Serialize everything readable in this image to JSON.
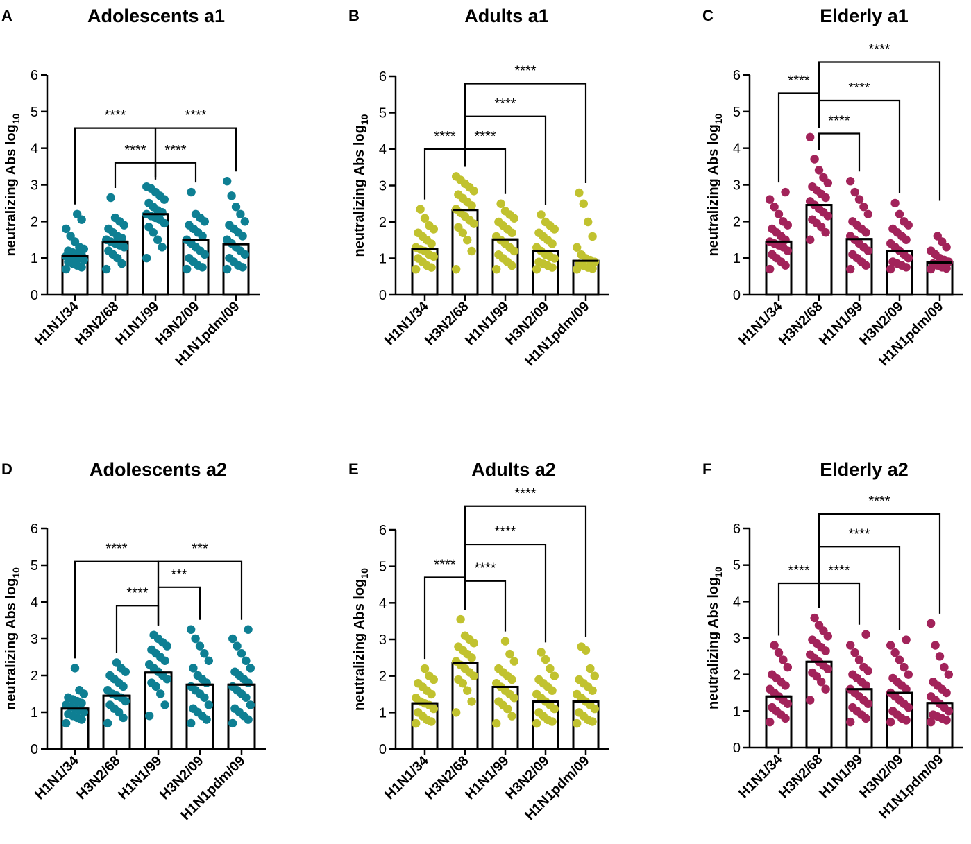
{
  "colors": {
    "teal": "#0e7f93",
    "olive": "#c1c22f",
    "maroon": "#a2235a",
    "axis": "#000000"
  },
  "chart_data": [
    {
      "panel_label": "A",
      "title": "Adolescents a1",
      "type": "bar",
      "color_key": "teal",
      "ylabel": "neutralizing Abs log",
      "ylabel_sub": "10",
      "ylim": [
        0,
        6
      ],
      "yticks": [
        "0",
        "1",
        "2",
        "3",
        "4",
        "5",
        "6"
      ],
      "categories": [
        "H1N1/34",
        "H3N2/68",
        "H1N1/99",
        "H3N2/09",
        "H1N1pdm/09"
      ],
      "values": [
        1.05,
        1.45,
        2.2,
        1.5,
        1.38
      ],
      "points": [
        [
          0.7,
          0.75,
          0.8,
          0.85,
          0.9,
          0.95,
          1.0,
          1.0,
          1.02,
          1.05,
          1.08,
          1.1,
          1.15,
          1.2,
          1.25,
          1.3,
          1.45,
          1.6,
          1.8,
          2.05,
          2.2
        ],
        [
          0.7,
          0.85,
          1.0,
          1.1,
          1.2,
          1.3,
          1.35,
          1.4,
          1.45,
          1.5,
          1.55,
          1.6,
          1.7,
          1.8,
          1.9,
          2.0,
          2.1,
          2.65
        ],
        [
          1.0,
          1.3,
          1.5,
          1.7,
          1.85,
          1.95,
          2.05,
          2.1,
          2.15,
          2.2,
          2.25,
          2.3,
          2.4,
          2.5,
          2.6,
          2.7,
          2.8,
          2.9,
          2.95
        ],
        [
          0.7,
          0.75,
          0.8,
          0.9,
          1.0,
          1.1,
          1.2,
          1.3,
          1.4,
          1.5,
          1.6,
          1.7,
          1.8,
          1.9,
          2.0,
          2.1,
          2.2,
          2.8
        ],
        [
          0.7,
          0.75,
          0.8,
          0.9,
          1.0,
          1.1,
          1.2,
          1.3,
          1.4,
          1.5,
          1.6,
          1.7,
          1.8,
          1.9,
          2.0,
          2.2,
          2.4,
          2.7,
          3.1
        ]
      ],
      "comparisons": [
        {
          "from": 0,
          "to": 2,
          "label": "****",
          "level": 4.55
        },
        {
          "from": 2,
          "to": 4,
          "label": "****",
          "level": 4.55
        },
        {
          "from": 1,
          "to": 2,
          "label": "****",
          "level": 3.6
        },
        {
          "from": 2,
          "to": 3,
          "label": "****",
          "level": 3.6
        }
      ]
    },
    {
      "panel_label": "B",
      "title": "Adults a1",
      "type": "bar",
      "color_key": "olive",
      "ylabel": "neutralizing Abs log",
      "ylabel_sub": "10",
      "ylim": [
        0,
        6
      ],
      "yticks": [
        "0",
        "1",
        "2",
        "3",
        "4",
        "5",
        "6"
      ],
      "categories": [
        "H1N1/34",
        "H3N2/68",
        "H1N1/99",
        "H3N2/09",
        "H1N1pdm/09"
      ],
      "values": [
        1.25,
        2.33,
        1.52,
        1.2,
        0.93
      ],
      "points": [
        [
          0.7,
          0.75,
          0.8,
          0.9,
          1.0,
          1.05,
          1.1,
          1.2,
          1.25,
          1.3,
          1.4,
          1.5,
          1.6,
          1.7,
          1.8,
          1.9,
          2.1,
          2.35
        ],
        [
          0.7,
          1.2,
          1.5,
          1.7,
          1.85,
          1.95,
          2.05,
          2.15,
          2.25,
          2.35,
          2.45,
          2.55,
          2.65,
          2.75,
          2.85,
          2.95,
          3.05,
          3.15,
          3.25
        ],
        [
          0.7,
          0.8,
          0.9,
          1.0,
          1.1,
          1.2,
          1.3,
          1.4,
          1.5,
          1.6,
          1.7,
          1.8,
          1.9,
          2.0,
          2.1,
          2.2,
          2.3,
          2.5
        ],
        [
          0.7,
          0.75,
          0.8,
          0.85,
          0.9,
          1.0,
          1.05,
          1.1,
          1.2,
          1.3,
          1.4,
          1.5,
          1.6,
          1.7,
          1.8,
          1.9,
          2.0,
          2.2
        ],
        [
          0.7,
          0.72,
          0.75,
          0.8,
          0.85,
          0.9,
          0.95,
          1.0,
          1.1,
          1.3,
          1.6,
          2.0,
          2.5,
          2.8
        ]
      ],
      "comparisons": [
        {
          "from": 1,
          "to": 4,
          "label": "****",
          "level": 5.8
        },
        {
          "from": 1,
          "to": 3,
          "label": "****",
          "level": 4.9
        },
        {
          "from": 0,
          "to": 1,
          "label": "****",
          "level": 4.0
        },
        {
          "from": 1,
          "to": 2,
          "label": "****",
          "level": 4.0
        }
      ]
    },
    {
      "panel_label": "C",
      "title": "Elderly a1",
      "type": "bar",
      "color_key": "maroon",
      "ylabel": "neutralizing Abs log",
      "ylabel_sub": "10",
      "ylim": [
        0,
        6
      ],
      "yticks": [
        "0",
        "1",
        "2",
        "3",
        "4",
        "5",
        "6"
      ],
      "categories": [
        "H1N1/34",
        "H3N2/68",
        "H1N1/99",
        "H3N2/09",
        "H1N1pdm/09"
      ],
      "values": [
        1.45,
        2.45,
        1.52,
        1.2,
        0.88
      ],
      "points": [
        [
          0.7,
          0.8,
          0.9,
          1.0,
          1.1,
          1.2,
          1.3,
          1.35,
          1.4,
          1.45,
          1.5,
          1.6,
          1.7,
          1.8,
          1.9,
          2.0,
          2.2,
          2.4,
          2.6,
          2.8
        ],
        [
          1.5,
          1.7,
          1.85,
          1.95,
          2.05,
          2.15,
          2.25,
          2.35,
          2.45,
          2.55,
          2.65,
          2.75,
          2.85,
          2.95,
          3.05,
          3.2,
          3.4,
          3.7,
          4.3
        ],
        [
          0.7,
          0.8,
          0.9,
          1.0,
          1.1,
          1.2,
          1.3,
          1.4,
          1.5,
          1.6,
          1.7,
          1.8,
          1.9,
          2.0,
          2.2,
          2.4,
          2.6,
          2.8,
          3.1
        ],
        [
          0.7,
          0.75,
          0.8,
          0.85,
          0.9,
          1.0,
          1.1,
          1.2,
          1.3,
          1.4,
          1.5,
          1.6,
          1.7,
          1.8,
          1.9,
          2.0,
          2.2,
          2.5
        ],
        [
          0.7,
          0.72,
          0.75,
          0.8,
          0.85,
          0.9,
          0.95,
          1.0,
          1.1,
          1.2,
          1.3,
          1.45,
          1.6
        ]
      ],
      "comparisons": [
        {
          "from": 1,
          "to": 4,
          "label": "****",
          "level": 6.35
        },
        {
          "from": 0,
          "to": 1,
          "label": "****",
          "level": 5.5
        },
        {
          "from": 1,
          "to": 3,
          "label": "****",
          "level": 5.3
        },
        {
          "from": 1,
          "to": 2,
          "label": "****",
          "level": 4.4
        }
      ]
    },
    {
      "panel_label": "D",
      "title": "Adolescents a2",
      "type": "bar",
      "color_key": "teal",
      "ylabel": "neutralizing Abs log",
      "ylabel_sub": "10",
      "ylim": [
        0,
        6
      ],
      "yticks": [
        "0",
        "1",
        "2",
        "3",
        "4",
        "5",
        "6"
      ],
      "categories": [
        "H1N1/34",
        "H3N2/68",
        "H1N1/99",
        "H3N2/09",
        "H1N1pdm/09"
      ],
      "values": [
        1.1,
        1.45,
        2.08,
        1.75,
        1.75
      ],
      "points": [
        [
          0.7,
          0.8,
          0.85,
          0.9,
          0.95,
          1.0,
          1.05,
          1.1,
          1.15,
          1.2,
          1.25,
          1.3,
          1.35,
          1.4,
          1.5,
          1.6,
          2.2
        ],
        [
          0.7,
          0.85,
          1.0,
          1.1,
          1.2,
          1.3,
          1.4,
          1.45,
          1.5,
          1.6,
          1.7,
          1.8,
          1.9,
          2.0,
          2.1,
          2.2,
          2.35
        ],
        [
          0.9,
          1.2,
          1.5,
          1.7,
          1.8,
          1.9,
          2.0,
          2.1,
          2.2,
          2.3,
          2.4,
          2.5,
          2.6,
          2.7,
          2.8,
          2.9,
          3.0,
          3.1
        ],
        [
          0.7,
          0.8,
          0.9,
          1.0,
          1.1,
          1.2,
          1.4,
          1.5,
          1.6,
          1.7,
          1.8,
          1.9,
          2.0,
          2.2,
          2.4,
          2.6,
          2.8,
          3.0,
          3.25
        ],
        [
          0.7,
          0.8,
          0.9,
          1.0,
          1.1,
          1.2,
          1.4,
          1.5,
          1.6,
          1.7,
          1.8,
          1.9,
          2.0,
          2.1,
          2.2,
          2.4,
          2.6,
          2.8,
          3.0,
          3.25
        ]
      ],
      "comparisons": [
        {
          "from": 0,
          "to": 2,
          "label": "****",
          "level": 5.1
        },
        {
          "from": 2,
          "to": 4,
          "label": "***",
          "level": 5.1
        },
        {
          "from": 1,
          "to": 2,
          "label": "****",
          "level": 3.9
        },
        {
          "from": 2,
          "to": 3,
          "label": "***",
          "level": 4.4
        }
      ]
    },
    {
      "panel_label": "E",
      "title": "Adults a2",
      "type": "bar",
      "color_key": "olive",
      "ylabel": "neutralizing Abs log",
      "ylabel_sub": "10",
      "ylim": [
        0,
        6
      ],
      "yticks": [
        "0",
        "1",
        "2",
        "3",
        "4",
        "5",
        "6"
      ],
      "categories": [
        "H1N1/34",
        "H3N2/68",
        "H1N1/99",
        "H3N2/09",
        "H1N1pdm/09"
      ],
      "values": [
        1.25,
        2.35,
        1.7,
        1.3,
        1.3
      ],
      "points": [
        [
          0.7,
          0.75,
          0.8,
          0.9,
          1.0,
          1.1,
          1.2,
          1.25,
          1.3,
          1.4,
          1.5,
          1.6,
          1.7,
          1.8,
          1.9,
          2.0,
          2.2
        ],
        [
          1.0,
          1.3,
          1.6,
          1.8,
          1.9,
          2.0,
          2.1,
          2.2,
          2.3,
          2.4,
          2.5,
          2.6,
          2.7,
          2.8,
          2.9,
          3.0,
          3.1,
          3.55
        ],
        [
          0.7,
          0.9,
          1.1,
          1.2,
          1.3,
          1.4,
          1.5,
          1.6,
          1.7,
          1.8,
          1.9,
          2.0,
          2.1,
          2.2,
          2.4,
          2.6,
          2.95
        ],
        [
          0.7,
          0.75,
          0.8,
          0.9,
          1.0,
          1.1,
          1.2,
          1.3,
          1.4,
          1.5,
          1.6,
          1.7,
          1.8,
          1.9,
          2.0,
          2.2,
          2.45,
          2.65
        ],
        [
          0.7,
          0.75,
          0.8,
          0.9,
          1.0,
          1.1,
          1.2,
          1.3,
          1.4,
          1.5,
          1.6,
          1.7,
          1.8,
          1.9,
          2.0,
          2.2,
          2.7,
          2.8
        ]
      ],
      "comparisons": [
        {
          "from": 1,
          "to": 4,
          "label": "****",
          "level": 6.65
        },
        {
          "from": 1,
          "to": 3,
          "label": "****",
          "level": 5.6
        },
        {
          "from": 0,
          "to": 1,
          "label": "****",
          "level": 4.7
        },
        {
          "from": 1,
          "to": 2,
          "label": "****",
          "level": 4.6
        }
      ]
    },
    {
      "panel_label": "F",
      "title": "Elderly a2",
      "type": "bar",
      "color_key": "maroon",
      "ylabel": "neutralizing Abs log",
      "ylabel_sub": "10",
      "ylim": [
        0,
        6
      ],
      "yticks": [
        "0",
        "1",
        "2",
        "3",
        "4",
        "5",
        "6"
      ],
      "categories": [
        "H1N1/34",
        "H3N2/68",
        "H1N1/99",
        "H3N2/09",
        "H1N1pdm/09"
      ],
      "values": [
        1.4,
        2.35,
        1.6,
        1.5,
        1.22
      ],
      "points": [
        [
          0.7,
          0.8,
          0.9,
          1.0,
          1.1,
          1.2,
          1.3,
          1.4,
          1.5,
          1.6,
          1.7,
          1.8,
          1.9,
          2.0,
          2.2,
          2.4,
          2.6,
          2.8
        ],
        [
          1.3,
          1.6,
          1.8,
          1.95,
          2.05,
          2.15,
          2.25,
          2.35,
          2.45,
          2.55,
          2.65,
          2.75,
          2.85,
          2.95,
          3.05,
          3.2,
          3.35,
          3.55
        ],
        [
          0.7,
          0.8,
          0.9,
          1.0,
          1.1,
          1.2,
          1.3,
          1.4,
          1.5,
          1.6,
          1.7,
          1.8,
          1.9,
          2.0,
          2.1,
          2.2,
          2.4,
          2.6,
          2.8,
          3.1
        ],
        [
          0.7,
          0.75,
          0.8,
          0.9,
          1.0,
          1.1,
          1.2,
          1.3,
          1.4,
          1.5,
          1.6,
          1.7,
          1.8,
          1.9,
          2.0,
          2.2,
          2.4,
          2.6,
          2.8,
          2.95
        ],
        [
          0.7,
          0.75,
          0.8,
          0.85,
          0.9,
          1.0,
          1.1,
          1.2,
          1.3,
          1.4,
          1.5,
          1.6,
          1.7,
          1.8,
          2.0,
          2.2,
          2.5,
          2.8,
          3.4
        ]
      ],
      "comparisons": [
        {
          "from": 1,
          "to": 4,
          "label": "****",
          "level": 6.4
        },
        {
          "from": 1,
          "to": 3,
          "label": "****",
          "level": 5.5
        },
        {
          "from": 0,
          "to": 1,
          "label": "****",
          "level": 4.5
        },
        {
          "from": 1,
          "to": 2,
          "label": "****",
          "level": 4.5
        }
      ]
    }
  ]
}
